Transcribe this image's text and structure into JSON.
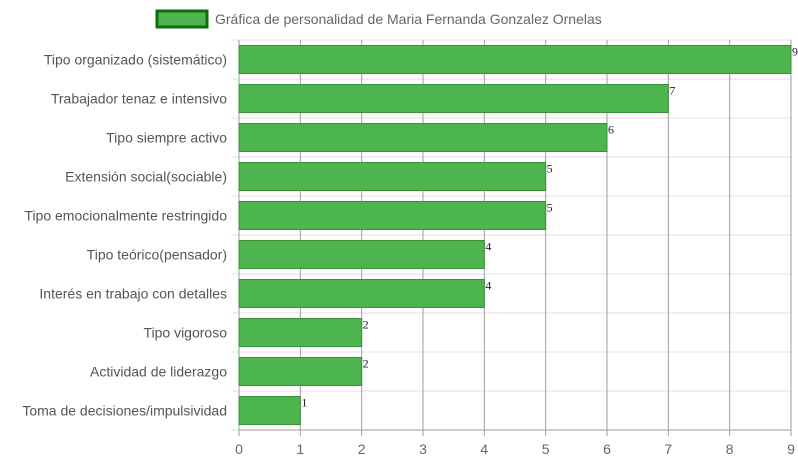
{
  "chart_data": {
    "type": "bar",
    "orientation": "horizontal",
    "title": "",
    "legend": {
      "position": "top",
      "entries": [
        "Gráfica de personalidad de Maria Fernanda Gonzalez Ornelas"
      ]
    },
    "categories": [
      "Tipo organizado (sistemático)",
      "Trabajador tenaz e intensivo",
      "Tipo siempre activo",
      "Extensión social(sociable)",
      "Tipo emocionalmente restringido",
      "Tipo teórico(pensador)",
      "Interés en trabajo con detalles",
      "Tipo vigoroso",
      "Actividad de liderazgo",
      "Toma de decisiones/impulsividad"
    ],
    "series": [
      {
        "name": "Gráfica de personalidad de Maria Fernanda Gonzalez Ornelas",
        "values": [
          9,
          7,
          6,
          5,
          5,
          4,
          4,
          2,
          2,
          1
        ]
      }
    ],
    "x_ticks": [
      "0",
      "1",
      "2",
      "3",
      "4",
      "5",
      "6",
      "7",
      "8",
      "9"
    ],
    "xlim": [
      0,
      9
    ],
    "grid": true,
    "data_labels": true,
    "colors": {
      "bar_fill": "#4db54d",
      "bar_stroke": "#3a8f3a",
      "legend_fill": "#4db54d",
      "legend_stroke": "#0e6e0e",
      "grid": "#e2e2e2",
      "vertical_grid": "#9e9e9e",
      "axis": "#9e9e9e"
    }
  }
}
